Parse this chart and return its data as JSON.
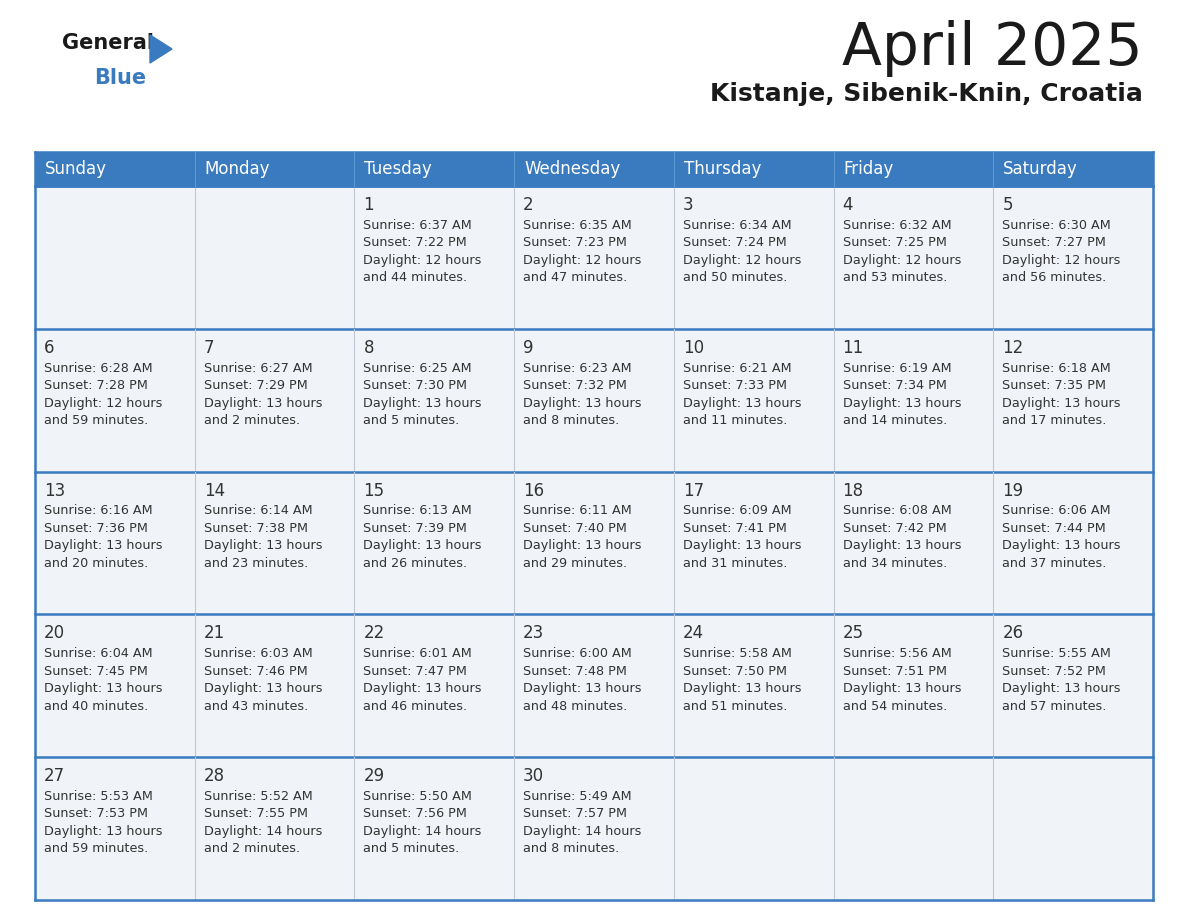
{
  "title": "April 2025",
  "subtitle": "Kistanje, Sibenik-Knin, Croatia",
  "days_of_week": [
    "Sunday",
    "Monday",
    "Tuesday",
    "Wednesday",
    "Thursday",
    "Friday",
    "Saturday"
  ],
  "header_bg": "#3a7abf",
  "header_text": "#ffffff",
  "row_bg": "#f0f4f8",
  "cell_border": "#3a7abf",
  "cell_divider": "#c0c8d8",
  "title_color": "#1a1a1a",
  "subtitle_color": "#1a1a1a",
  "text_color": "#333333",
  "logo_general_color": "#1a1a1a",
  "logo_blue_color": "#3a7abf",
  "logo_triangle_color": "#3a7abf",
  "calendar_data": [
    [
      {
        "day": "",
        "sunrise": "",
        "sunset": "",
        "daylight_h": "",
        "daylight_m": ""
      },
      {
        "day": "",
        "sunrise": "",
        "sunset": "",
        "daylight_h": "",
        "daylight_m": ""
      },
      {
        "day": "1",
        "sunrise": "6:37 AM",
        "sunset": "7:22 PM",
        "daylight_h": "12 hours",
        "daylight_m": "and 44 minutes."
      },
      {
        "day": "2",
        "sunrise": "6:35 AM",
        "sunset": "7:23 PM",
        "daylight_h": "12 hours",
        "daylight_m": "and 47 minutes."
      },
      {
        "day": "3",
        "sunrise": "6:34 AM",
        "sunset": "7:24 PM",
        "daylight_h": "12 hours",
        "daylight_m": "and 50 minutes."
      },
      {
        "day": "4",
        "sunrise": "6:32 AM",
        "sunset": "7:25 PM",
        "daylight_h": "12 hours",
        "daylight_m": "and 53 minutes."
      },
      {
        "day": "5",
        "sunrise": "6:30 AM",
        "sunset": "7:27 PM",
        "daylight_h": "12 hours",
        "daylight_m": "and 56 minutes."
      }
    ],
    [
      {
        "day": "6",
        "sunrise": "6:28 AM",
        "sunset": "7:28 PM",
        "daylight_h": "12 hours",
        "daylight_m": "and 59 minutes."
      },
      {
        "day": "7",
        "sunrise": "6:27 AM",
        "sunset": "7:29 PM",
        "daylight_h": "13 hours",
        "daylight_m": "and 2 minutes."
      },
      {
        "day": "8",
        "sunrise": "6:25 AM",
        "sunset": "7:30 PM",
        "daylight_h": "13 hours",
        "daylight_m": "and 5 minutes."
      },
      {
        "day": "9",
        "sunrise": "6:23 AM",
        "sunset": "7:32 PM",
        "daylight_h": "13 hours",
        "daylight_m": "and 8 minutes."
      },
      {
        "day": "10",
        "sunrise": "6:21 AM",
        "sunset": "7:33 PM",
        "daylight_h": "13 hours",
        "daylight_m": "and 11 minutes."
      },
      {
        "day": "11",
        "sunrise": "6:19 AM",
        "sunset": "7:34 PM",
        "daylight_h": "13 hours",
        "daylight_m": "and 14 minutes."
      },
      {
        "day": "12",
        "sunrise": "6:18 AM",
        "sunset": "7:35 PM",
        "daylight_h": "13 hours",
        "daylight_m": "and 17 minutes."
      }
    ],
    [
      {
        "day": "13",
        "sunrise": "6:16 AM",
        "sunset": "7:36 PM",
        "daylight_h": "13 hours",
        "daylight_m": "and 20 minutes."
      },
      {
        "day": "14",
        "sunrise": "6:14 AM",
        "sunset": "7:38 PM",
        "daylight_h": "13 hours",
        "daylight_m": "and 23 minutes."
      },
      {
        "day": "15",
        "sunrise": "6:13 AM",
        "sunset": "7:39 PM",
        "daylight_h": "13 hours",
        "daylight_m": "and 26 minutes."
      },
      {
        "day": "16",
        "sunrise": "6:11 AM",
        "sunset": "7:40 PM",
        "daylight_h": "13 hours",
        "daylight_m": "and 29 minutes."
      },
      {
        "day": "17",
        "sunrise": "6:09 AM",
        "sunset": "7:41 PM",
        "daylight_h": "13 hours",
        "daylight_m": "and 31 minutes."
      },
      {
        "day": "18",
        "sunrise": "6:08 AM",
        "sunset": "7:42 PM",
        "daylight_h": "13 hours",
        "daylight_m": "and 34 minutes."
      },
      {
        "day": "19",
        "sunrise": "6:06 AM",
        "sunset": "7:44 PM",
        "daylight_h": "13 hours",
        "daylight_m": "and 37 minutes."
      }
    ],
    [
      {
        "day": "20",
        "sunrise": "6:04 AM",
        "sunset": "7:45 PM",
        "daylight_h": "13 hours",
        "daylight_m": "and 40 minutes."
      },
      {
        "day": "21",
        "sunrise": "6:03 AM",
        "sunset": "7:46 PM",
        "daylight_h": "13 hours",
        "daylight_m": "and 43 minutes."
      },
      {
        "day": "22",
        "sunrise": "6:01 AM",
        "sunset": "7:47 PM",
        "daylight_h": "13 hours",
        "daylight_m": "and 46 minutes."
      },
      {
        "day": "23",
        "sunrise": "6:00 AM",
        "sunset": "7:48 PM",
        "daylight_h": "13 hours",
        "daylight_m": "and 48 minutes."
      },
      {
        "day": "24",
        "sunrise": "5:58 AM",
        "sunset": "7:50 PM",
        "daylight_h": "13 hours",
        "daylight_m": "and 51 minutes."
      },
      {
        "day": "25",
        "sunrise": "5:56 AM",
        "sunset": "7:51 PM",
        "daylight_h": "13 hours",
        "daylight_m": "and 54 minutes."
      },
      {
        "day": "26",
        "sunrise": "5:55 AM",
        "sunset": "7:52 PM",
        "daylight_h": "13 hours",
        "daylight_m": "and 57 minutes."
      }
    ],
    [
      {
        "day": "27",
        "sunrise": "5:53 AM",
        "sunset": "7:53 PM",
        "daylight_h": "13 hours",
        "daylight_m": "and 59 minutes."
      },
      {
        "day": "28",
        "sunrise": "5:52 AM",
        "sunset": "7:55 PM",
        "daylight_h": "14 hours",
        "daylight_m": "and 2 minutes."
      },
      {
        "day": "29",
        "sunrise": "5:50 AM",
        "sunset": "7:56 PM",
        "daylight_h": "14 hours",
        "daylight_m": "and 5 minutes."
      },
      {
        "day": "30",
        "sunrise": "5:49 AM",
        "sunset": "7:57 PM",
        "daylight_h": "14 hours",
        "daylight_m": "and 8 minutes."
      },
      {
        "day": "",
        "sunrise": "",
        "sunset": "",
        "daylight_h": "",
        "daylight_m": ""
      },
      {
        "day": "",
        "sunrise": "",
        "sunset": "",
        "daylight_h": "",
        "daylight_m": ""
      },
      {
        "day": "",
        "sunrise": "",
        "sunset": "",
        "daylight_h": "",
        "daylight_m": ""
      }
    ]
  ]
}
